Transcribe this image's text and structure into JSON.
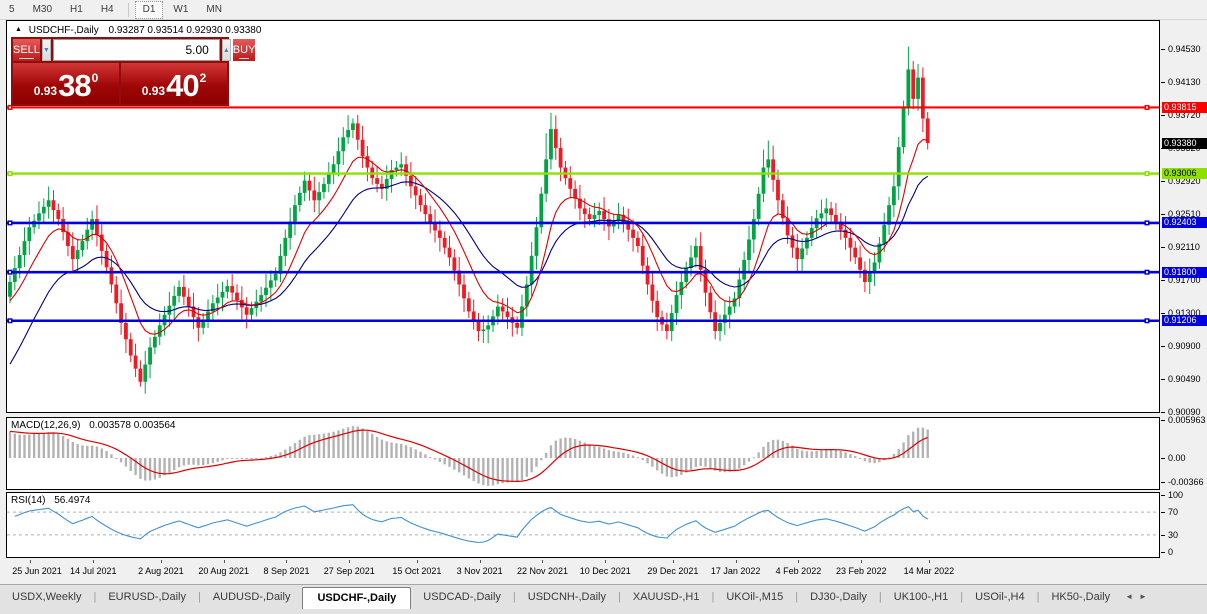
{
  "toolbar": {
    "items": [
      "5",
      "M30",
      "H1",
      "H4",
      "D1",
      "W1",
      "MN"
    ],
    "active": "D1",
    "separator_before": "D1"
  },
  "chart": {
    "collapse_icon": "up-triangle",
    "symbol": "USDCHF-,Daily",
    "ohlc_line": "0.93287 0.93514 0.92930 0.93380"
  },
  "trade_panel": {
    "sell_label": "SELL",
    "buy_label": "BUY",
    "volume": "5.00",
    "sell_small": "0.93",
    "sell_big": "38",
    "sell_sup": "0",
    "buy_small": "0.93",
    "buy_big": "40",
    "buy_sup": "2",
    "spin_down": "▼",
    "spin_up": "▲"
  },
  "indicators": {
    "macd_name": "MACD(12,26,9)",
    "macd_values": "0.003578 0.003564",
    "macd_axis": [
      {
        "label": "0.005963",
        "value": 0.005963
      },
      {
        "label": "0.00",
        "value": 0
      },
      {
        "label": "-0.00366",
        "value": -0.00366
      }
    ],
    "rsi_name": "RSI(14)",
    "rsi_value": "56.4974",
    "rsi_axis": [
      {
        "label": "100",
        "value": 100
      },
      {
        "label": "70",
        "value": 70
      },
      {
        "label": "30",
        "value": 30
      },
      {
        "label": "0",
        "value": 0
      }
    ]
  },
  "price_axis": {
    "ticks": [
      {
        "label": "0.94530",
        "value": 0.9453
      },
      {
        "label": "0.94130",
        "value": 0.9413
      },
      {
        "label": "0.93720",
        "value": 0.9372
      },
      {
        "label": "0.93320",
        "value": 0.9332
      },
      {
        "label": "0.92920",
        "value": 0.9292
      },
      {
        "label": "0.92510",
        "value": 0.9251
      },
      {
        "label": "0.92110",
        "value": 0.9211
      },
      {
        "label": "0.91700",
        "value": 0.917
      },
      {
        "label": "0.91300",
        "value": 0.913
      },
      {
        "label": "0.90900",
        "value": 0.909
      },
      {
        "label": "0.90490",
        "value": 0.9049
      },
      {
        "label": "0.90090",
        "value": 0.9009
      }
    ],
    "badges": [
      {
        "label": "0.93815",
        "value": 0.93815,
        "bg": "#ff0000",
        "fg": "#ffffff"
      },
      {
        "label": "0.93380",
        "value": 0.9338,
        "bg": "#000000",
        "fg": "#ffffff"
      },
      {
        "label": "0.93006",
        "value": 0.93006,
        "bg": "#8ee000",
        "fg": "#000000"
      },
      {
        "label": "0.92403",
        "value": 0.92403,
        "bg": "#0000e0",
        "fg": "#ffffff"
      },
      {
        "label": "0.91800",
        "value": 0.918,
        "bg": "#0000e0",
        "fg": "#ffffff"
      },
      {
        "label": "0.91206",
        "value": 0.91206,
        "bg": "#0000e0",
        "fg": "#ffffff"
      }
    ]
  },
  "tabs": {
    "items": [
      "USDX,Weekly",
      "EURUSD-,Daily",
      "AUDUSD-,Daily",
      "USDCHF-,Daily",
      "USDCAD-,Daily",
      "USDCNH-,Daily",
      "XAUUSD-,H1",
      "UKOil-,M15",
      "DJ30-,Daily",
      "UK100-,H1",
      "USOil-,H4",
      "HK50-,Daily"
    ],
    "active": "USDCHF-,Daily",
    "nav_left": "◄",
    "nav_right": "►"
  },
  "chart_data": {
    "type": "candlestick",
    "symbol": "USDCHF-",
    "timeframe": "Daily",
    "ohlc_display": {
      "open": 0.93287,
      "high": 0.93514,
      "low": 0.9293,
      "close": 0.9338
    },
    "ylim": [
      0.9009,
      0.9453
    ],
    "first_open": 0.915,
    "closes": [
      0.9168,
      0.9185,
      0.9201,
      0.9218,
      0.9235,
      0.9243,
      0.9252,
      0.926,
      0.9268,
      0.9256,
      0.9245,
      0.9229,
      0.9212,
      0.9196,
      0.9207,
      0.9218,
      0.9232,
      0.9245,
      0.9226,
      0.9206,
      0.9186,
      0.9165,
      0.9142,
      0.9118,
      0.9098,
      0.9078,
      0.9062,
      0.9046,
      0.9067,
      0.9088,
      0.9101,
      0.9115,
      0.9128,
      0.9139,
      0.9151,
      0.9162,
      0.915,
      0.9138,
      0.9125,
      0.9112,
      0.9122,
      0.9132,
      0.9142,
      0.9149,
      0.9156,
      0.9163,
      0.9155,
      0.9146,
      0.9137,
      0.9128,
      0.9136,
      0.9144,
      0.9152,
      0.9161,
      0.917,
      0.9178,
      0.92,
      0.9222,
      0.9242,
      0.9262,
      0.9277,
      0.9292,
      0.928,
      0.9268,
      0.9278,
      0.9288,
      0.93,
      0.9312,
      0.9328,
      0.9345,
      0.9354,
      0.9362,
      0.9342,
      0.9322,
      0.9308,
      0.9295,
      0.9288,
      0.9282,
      0.9294,
      0.9305,
      0.9308,
      0.9312,
      0.9298,
      0.9285,
      0.9274,
      0.9262,
      0.9251,
      0.924,
      0.9231,
      0.9222,
      0.921,
      0.9198,
      0.9182,
      0.9165,
      0.9148,
      0.9132,
      0.912,
      0.9108,
      0.911,
      0.9115,
      0.9126,
      0.9138,
      0.9132,
      0.9125,
      0.9118,
      0.9112,
      0.9138,
      0.9165,
      0.92,
      0.9235,
      0.9276,
      0.9318,
      0.9355,
      0.9332,
      0.9308,
      0.9295,
      0.9282,
      0.927,
      0.9258,
      0.9251,
      0.9245,
      0.925,
      0.9255,
      0.9245,
      0.9236,
      0.9243,
      0.925,
      0.9241,
      0.9232,
      0.9222,
      0.9212,
      0.9188,
      0.9165,
      0.9145,
      0.9125,
      0.9116,
      0.9108,
      0.913,
      0.9152,
      0.9168,
      0.9185,
      0.9198,
      0.9212,
      0.9183,
      0.9155,
      0.9131,
      0.9108,
      0.9118,
      0.9128,
      0.9138,
      0.9148,
      0.9171,
      0.9195,
      0.922,
      0.9245,
      0.9276,
      0.9308,
      0.9318,
      0.9293,
      0.9268,
      0.9246,
      0.9225,
      0.921,
      0.9196,
      0.9209,
      0.9222,
      0.9234,
      0.9246,
      0.9252,
      0.9258,
      0.925,
      0.9242,
      0.9232,
      0.9222,
      0.921,
      0.9198,
      0.9183,
      0.9168,
      0.918,
      0.9192,
      0.9215,
      0.9238,
      0.9262,
      0.9285,
      0.9333,
      0.9382,
      0.9428,
      0.9392,
      0.9418,
      0.9368,
      0.9338
    ],
    "wick_overrides": {
      "27": {
        "l": 0.904
      },
      "61": {
        "h": 0.9303
      },
      "70": {
        "h": 0.9372
      },
      "71": {
        "h": 0.9368
      },
      "111": {
        "h": 0.935
      },
      "112": {
        "h": 0.9375
      },
      "156": {
        "h": 0.933
      },
      "157": {
        "h": 0.9341
      },
      "186": {
        "h": 0.9456
      }
    },
    "levels": [
      {
        "value": 0.93815,
        "color": "#ff0000",
        "width": 2.2
      },
      {
        "value": 0.93006,
        "color": "#8ee000",
        "width": 2.4
      },
      {
        "value": 0.92403,
        "color": "#0000e0",
        "width": 2.6
      },
      {
        "value": 0.918,
        "color": "#0000e0",
        "width": 2.6
      },
      {
        "value": 0.91206,
        "color": "#0000e0",
        "width": 2.6
      }
    ],
    "date_ticks": [
      {
        "label": "25 Jun 2021",
        "bar": 3
      },
      {
        "label": "14 Jul 2021",
        "bar": 16
      },
      {
        "label": "2 Aug 2021",
        "bar": 30
      },
      {
        "label": "20 Aug 2021",
        "bar": 43
      },
      {
        "label": "8 Sep 2021",
        "bar": 56
      },
      {
        "label": "27 Sep 2021",
        "bar": 69
      },
      {
        "label": "15 Oct 2021",
        "bar": 83
      },
      {
        "label": "3 Nov 2021",
        "bar": 96
      },
      {
        "label": "22 Nov 2021",
        "bar": 109
      },
      {
        "label": "10 Dec 2021",
        "bar": 122
      },
      {
        "label": "29 Dec 2021",
        "bar": 136
      },
      {
        "label": "17 Jan 2022",
        "bar": 149
      },
      {
        "label": "4 Feb 2022",
        "bar": 162
      },
      {
        "label": "23 Feb 2022",
        "bar": 175
      },
      {
        "label": "14 Mar 2022",
        "bar": 189
      }
    ],
    "ma": {
      "fast_period": 10,
      "slow_period": 22
    },
    "macd": {
      "fast": 12,
      "slow": 26,
      "signal": 9,
      "current": [
        0.003578,
        0.003564
      ],
      "axis_max": 0.005963,
      "axis_min": -0.00366
    },
    "rsi": {
      "period": 14,
      "current": 56.4974,
      "levels": [
        70,
        30
      ]
    },
    "colors": {
      "bull": "#00a443",
      "bear": "#ed1c24",
      "ma_fast": "#dd0000",
      "ma_slow": "#000080",
      "macd_hist": "#b3b3b3",
      "macd_signal": "#dd0000",
      "rsi_line": "#3f92d2",
      "rsi_level": "#b0b0b0"
    }
  }
}
